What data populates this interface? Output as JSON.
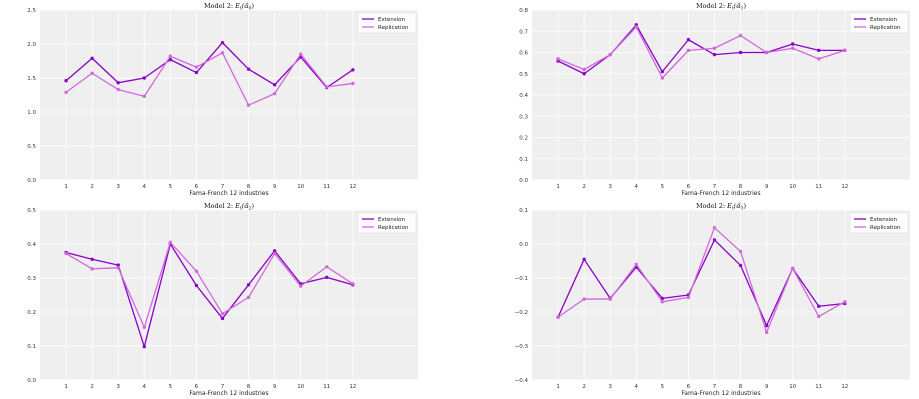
{
  "colors": {
    "extension": "#8b00c8",
    "replication": "#d268dc",
    "plot_bg": "#efefef",
    "grid": "#ffffff"
  },
  "chart_data": [
    {
      "type": "line",
      "title": "Model 2: E_t(α̂_0)",
      "title_main": "Model 2: ",
      "title_sym": "E",
      "title_sub": "t",
      "title_arg": "(α̂",
      "title_arg_sub": "0",
      "title_close": ")",
      "xlabel": "Fama-French 12 industries",
      "ylabel": "",
      "categories": [
        "1",
        "2",
        "3",
        "4",
        "5",
        "6",
        "7",
        "8",
        "9",
        "10",
        "11",
        "12"
      ],
      "xlim": [
        0,
        14.5
      ],
      "ylim": [
        0,
        2.5
      ],
      "yticks": [
        "0.0",
        "0.5",
        "1.0",
        "1.5",
        "2.0",
        "2.5"
      ],
      "ytick_values": [
        0,
        0.5,
        1.0,
        1.5,
        2.0,
        2.5
      ],
      "grid": true,
      "legend": "top-right",
      "series": [
        {
          "name": "Extension",
          "values": [
            1.46,
            1.79,
            1.43,
            1.5,
            1.77,
            1.58,
            2.02,
            1.63,
            1.4,
            1.81,
            1.36,
            1.62
          ]
        },
        {
          "name": "Replication",
          "values": [
            1.29,
            1.57,
            1.33,
            1.23,
            1.82,
            1.66,
            1.87,
            1.1,
            1.27,
            1.85,
            1.37,
            1.42
          ]
        }
      ]
    },
    {
      "type": "line",
      "title": "Model 2: E_t(α̂_1)",
      "title_main": "Model 2: ",
      "title_sym": "E",
      "title_sub": "t",
      "title_arg": "(α̂",
      "title_arg_sub": "1",
      "title_close": ")",
      "xlabel": "Fama-French 12 industries",
      "ylabel": "",
      "categories": [
        "1",
        "2",
        "3",
        "4",
        "5",
        "6",
        "7",
        "8",
        "9",
        "10",
        "11",
        "12"
      ],
      "xlim": [
        0,
        14.5
      ],
      "ylim": [
        0,
        0.8
      ],
      "yticks": [
        "0.0",
        "0.1",
        "0.2",
        "0.3",
        "0.4",
        "0.5",
        "0.6",
        "0.7",
        "0.8"
      ],
      "ytick_values": [
        0,
        0.1,
        0.2,
        0.3,
        0.4,
        0.5,
        0.6,
        0.7,
        0.8
      ],
      "grid": true,
      "legend": "top-right",
      "series": [
        {
          "name": "Extension",
          "values": [
            0.56,
            0.5,
            0.59,
            0.73,
            0.51,
            0.66,
            0.59,
            0.6,
            0.6,
            0.64,
            0.61,
            0.61
          ]
        },
        {
          "name": "Replication",
          "values": [
            0.57,
            0.52,
            0.59,
            0.72,
            0.48,
            0.61,
            0.62,
            0.68,
            0.6,
            0.62,
            0.57,
            0.61
          ]
        }
      ]
    },
    {
      "type": "line",
      "title": "Model 2: E_t(α̂_2)",
      "title_main": "Model 2: ",
      "title_sym": "E",
      "title_sub": "t",
      "title_arg": "(α̂",
      "title_arg_sub": "2",
      "title_close": ")",
      "xlabel": "Fama-French 12 industries",
      "ylabel": "",
      "categories": [
        "1",
        "2",
        "3",
        "4",
        "5",
        "6",
        "7",
        "8",
        "9",
        "10",
        "11",
        "12"
      ],
      "xlim": [
        0,
        14.5
      ],
      "ylim": [
        0,
        0.5
      ],
      "yticks": [
        "0.0",
        "0.1",
        "0.2",
        "0.3",
        "0.4",
        "0.5"
      ],
      "ytick_values": [
        0,
        0.1,
        0.2,
        0.3,
        0.4,
        0.5
      ],
      "grid": true,
      "legend": "top-right",
      "series": [
        {
          "name": "Extension",
          "values": [
            0.375,
            0.355,
            0.338,
            0.098,
            0.4,
            0.278,
            0.181,
            0.28,
            0.38,
            0.283,
            0.302,
            0.28
          ]
        },
        {
          "name": "Replication",
          "values": [
            0.372,
            0.327,
            0.33,
            0.155,
            0.405,
            0.32,
            0.195,
            0.243,
            0.372,
            0.276,
            0.333,
            0.283
          ]
        }
      ]
    },
    {
      "type": "line",
      "title": "Model 2: E_t(α̂_3)",
      "title_main": "Model 2: ",
      "title_sym": "E",
      "title_sub": "t",
      "title_arg": "(α̂",
      "title_arg_sub": "3",
      "title_close": ")",
      "xlabel": "Fama-French 12 industries",
      "ylabel": "",
      "categories": [
        "1",
        "2",
        "3",
        "4",
        "5",
        "6",
        "7",
        "8",
        "9",
        "10",
        "11",
        "12"
      ],
      "xlim": [
        0,
        14.5
      ],
      "ylim": [
        -0.4,
        0.1
      ],
      "yticks": [
        "−0.4",
        "−0.3",
        "−0.2",
        "−0.1",
        "0.0",
        "0.1"
      ],
      "ytick_values": [
        -0.4,
        -0.3,
        -0.2,
        -0.1,
        0.0,
        0.1
      ],
      "grid": true,
      "legend": "top-right",
      "series": [
        {
          "name": "Extension",
          "values": [
            -0.215,
            -0.045,
            -0.16,
            -0.068,
            -0.16,
            -0.15,
            0.012,
            -0.063,
            -0.24,
            -0.072,
            -0.183,
            -0.175
          ]
        },
        {
          "name": "Replication",
          "values": [
            -0.215,
            -0.162,
            -0.162,
            -0.06,
            -0.17,
            -0.157,
            0.048,
            -0.022,
            -0.26,
            -0.072,
            -0.213,
            -0.17
          ]
        }
      ]
    }
  ]
}
